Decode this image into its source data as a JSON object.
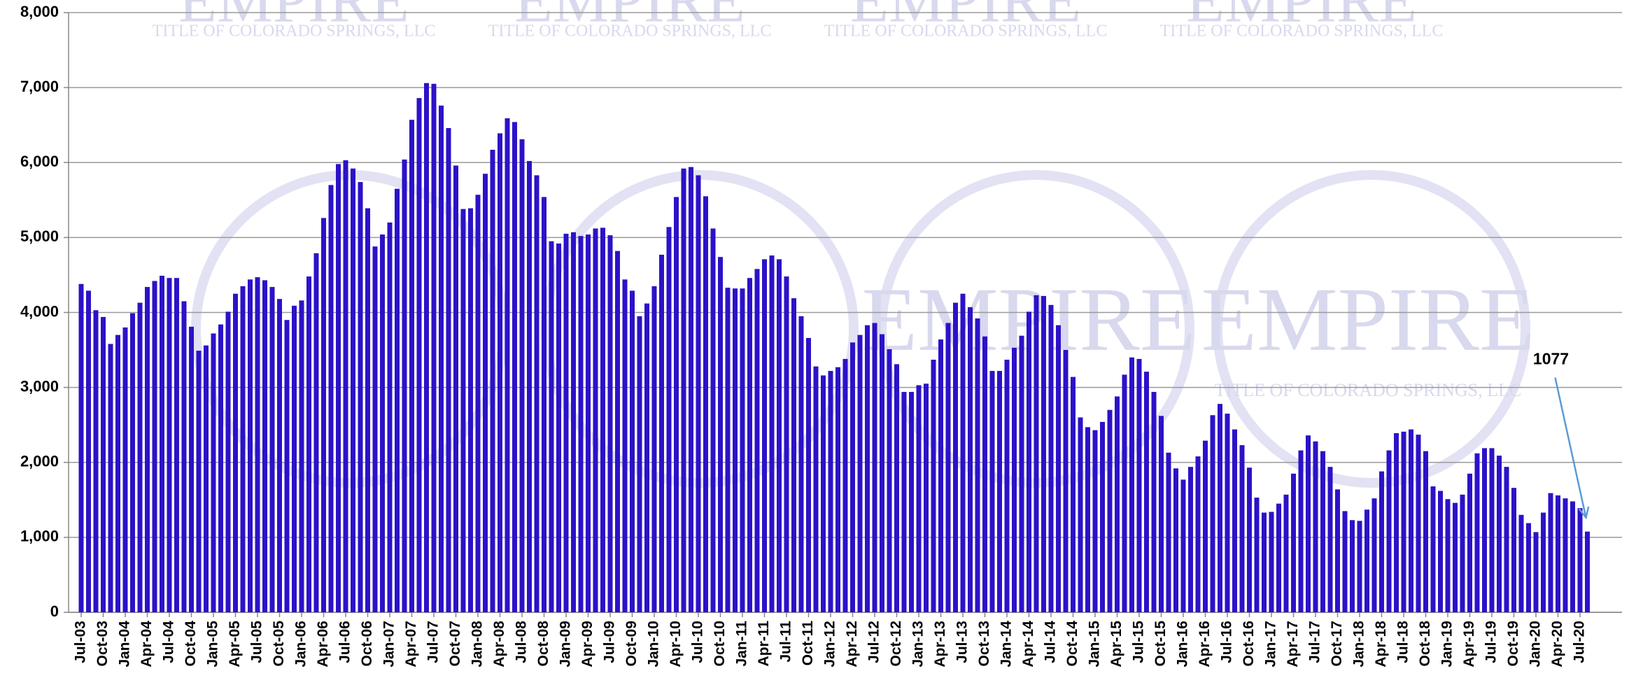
{
  "chart_data": {
    "type": "bar",
    "watermark_title": "EMPIRE",
    "watermark_subtitle": "TITLE OF COLORADO SPRINGS, LLC",
    "annotation": {
      "text": "1077",
      "index": 205
    },
    "categories": [
      "Jul-03",
      null,
      null,
      "Oct-03",
      null,
      null,
      "Jan-04",
      null,
      null,
      "Apr-04",
      null,
      null,
      "Jul-04",
      null,
      null,
      "Oct-04",
      null,
      null,
      "Jan-05",
      null,
      null,
      "Apr-05",
      null,
      null,
      "Jul-05",
      null,
      null,
      "Oct-05",
      null,
      null,
      "Jan-06",
      null,
      null,
      "Apr-06",
      null,
      null,
      "Jul-06",
      null,
      null,
      "Oct-06",
      null,
      null,
      "Jan-07",
      null,
      null,
      "Apr-07",
      null,
      null,
      "Jul-07",
      null,
      null,
      "Oct-07",
      null,
      null,
      "Jan-08",
      null,
      null,
      "Apr-08",
      null,
      null,
      "Jul-08",
      null,
      null,
      "Oct-08",
      null,
      null,
      "Jan-09",
      null,
      null,
      "Apr-09",
      null,
      null,
      "Jul-09",
      null,
      null,
      "Oct-09",
      null,
      null,
      "Jan-10",
      null,
      null,
      "Apr-10",
      null,
      null,
      "Jul-10",
      null,
      null,
      "Oct-10",
      null,
      null,
      "Jan-11",
      null,
      null,
      "Apr-11",
      null,
      null,
      "Jul-11",
      null,
      null,
      "Oct-11",
      null,
      null,
      "Jan-12",
      null,
      null,
      "Apr-12",
      null,
      null,
      "Jul-12",
      null,
      null,
      "Oct-12",
      null,
      null,
      "Jan-13",
      null,
      null,
      "Apr-13",
      null,
      null,
      "Jul-13",
      null,
      null,
      "Oct-13",
      null,
      null,
      "Jan-14",
      null,
      null,
      "Apr-14",
      null,
      null,
      "Jul-14",
      null,
      null,
      "Oct-14",
      null,
      null,
      "Jan-15",
      null,
      null,
      "Apr-15",
      null,
      null,
      "Jul-15",
      null,
      null,
      "Oct-15",
      null,
      null,
      "Jan-16",
      null,
      null,
      "Apr-16",
      null,
      null,
      "Jul-16",
      null,
      null,
      "Oct-16",
      null,
      null,
      "Jan-17",
      null,
      null,
      "Apr-17",
      null,
      null,
      "Jul-17",
      null,
      null,
      "Oct-17",
      null,
      null,
      "Jan-18",
      null,
      null,
      "Apr-18",
      null,
      null,
      "Jul-18",
      null,
      null,
      "Oct-18",
      null,
      null,
      "Jan-19",
      null,
      null,
      "Apr-19",
      null,
      null,
      "Jul-19",
      null,
      null,
      "Oct-19",
      null,
      null,
      "Jan-20",
      null,
      null,
      "Apr-20",
      null,
      null,
      "Jul-20",
      null
    ],
    "values": [
      4380,
      4290,
      4030,
      3940,
      3580,
      3700,
      3800,
      3990,
      4130,
      4340,
      4420,
      4490,
      4460,
      4460,
      4150,
      3810,
      3490,
      3560,
      3720,
      3840,
      4010,
      4250,
      4350,
      4440,
      4470,
      4430,
      4340,
      4180,
      3900,
      4090,
      4160,
      4480,
      4790,
      5260,
      5700,
      5980,
      6030,
      5920,
      5740,
      5390,
      4880,
      5040,
      5200,
      5650,
      6040,
      6570,
      6860,
      7060,
      7050,
      6760,
      6460,
      5960,
      5380,
      5390,
      5570,
      5850,
      6170,
      6390,
      6590,
      6540,
      6310,
      6020,
      5830,
      5540,
      4950,
      4920,
      5050,
      5070,
      5020,
      5040,
      5120,
      5130,
      5030,
      4820,
      4440,
      4290,
      3950,
      4120,
      4350,
      4770,
      5140,
      5540,
      5920,
      5940,
      5830,
      5550,
      5120,
      4740,
      4330,
      4320,
      4320,
      4460,
      4580,
      4710,
      4760,
      4710,
      4480,
      4190,
      3950,
      3660,
      3280,
      3160,
      3220,
      3270,
      3380,
      3600,
      3700,
      3830,
      3860,
      3710,
      3510,
      3310,
      2940,
      2940,
      3030,
      3050,
      3370,
      3640,
      3860,
      4130,
      4250,
      4070,
      3920,
      3680,
      3220,
      3220,
      3370,
      3530,
      3690,
      4010,
      4230,
      4220,
      4100,
      3830,
      3500,
      3140,
      2600,
      2470,
      2430,
      2540,
      2700,
      2880,
      3170,
      3400,
      3380,
      3210,
      2940,
      2620,
      2130,
      1920,
      1770,
      1940,
      2080,
      2290,
      2630,
      2780,
      2650,
      2440,
      2230,
      1930,
      1530,
      1330,
      1340,
      1450,
      1570,
      1850,
      2160,
      2360,
      2280,
      2150,
      1940,
      1640,
      1350,
      1230,
      1220,
      1370,
      1520,
      1880,
      2160,
      2390,
      2410,
      2440,
      2370,
      2150,
      1680,
      1620,
      1510,
      1460,
      1570,
      1850,
      2120,
      2190,
      2190,
      2090,
      1940,
      1660,
      1300,
      1190,
      1070,
      1330,
      1590,
      1560,
      1520,
      1480,
      1390,
      1077
    ],
    "color": "#2b12c8",
    "ylim": [
      0,
      8000
    ],
    "yticks": [
      0,
      {
        "value": 1000,
        "label": "1,000"
      },
      {
        "value": 2000,
        "label": "2,000"
      },
      {
        "value": 3000,
        "label": "3,000"
      },
      {
        "value": 4000,
        "label": "4,000"
      },
      {
        "value": 5000,
        "label": "5,000"
      },
      {
        "value": 6000,
        "label": "6,000"
      },
      {
        "value": 7000,
        "label": "7,000"
      },
      {
        "value": 8000,
        "label": "8,000"
      }
    ],
    "grid": true
  }
}
